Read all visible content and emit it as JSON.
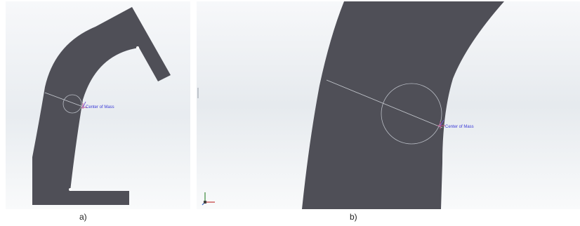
{
  "colors": {
    "part_fill": "#4f4f57",
    "background_top": "#f4f6f8",
    "background_mid": "#e9edf1",
    "annotation": "#3a3ad6",
    "marker": "#c24f8a"
  },
  "panels": [
    {
      "id": "a",
      "caption": "a)",
      "annotation": "Center of Mass"
    },
    {
      "id": "b",
      "caption": "b)",
      "annotation": "Center of Mass"
    }
  ],
  "icons": [
    "triad-icon",
    "center-of-mass-icon"
  ]
}
